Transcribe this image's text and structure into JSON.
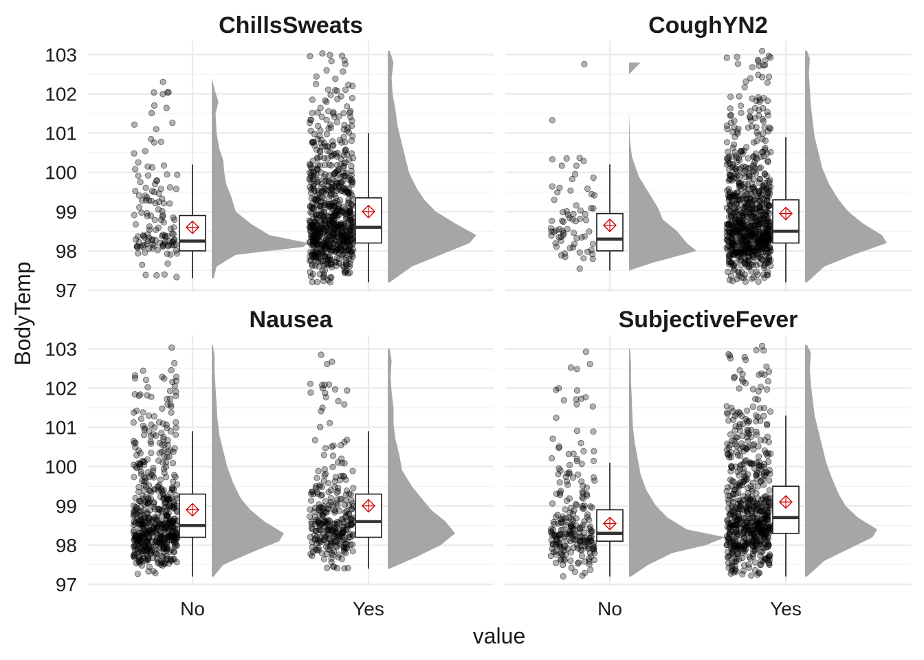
{
  "chart_data": {
    "type": "raincloud",
    "xlabel": "value",
    "ylabel": "BodyTemp",
    "categories": [
      "No",
      "Yes"
    ],
    "yticks": [
      "97",
      "98",
      "99",
      "100",
      "101",
      "102",
      "103"
    ],
    "ylim": [
      97,
      103.2
    ],
    "grid": true,
    "colors": {
      "points": "#000000",
      "density": "#a6a6a6",
      "mean": "#d40000",
      "box": "#1a1a1a"
    },
    "facets": [
      {
        "title": "ChillsSweats",
        "groups": [
          {
            "category": "No",
            "n": 130,
            "min": 97.3,
            "q1": 98.0,
            "median": 98.25,
            "q3": 98.9,
            "max": 100.2,
            "mean": 98.6,
            "density": [
              [
                97.3,
                0.02
              ],
              [
                97.6,
                0.05
              ],
              [
                97.9,
                0.25
              ],
              [
                98.1,
                0.95
              ],
              [
                98.2,
                1.0
              ],
              [
                98.4,
                0.6
              ],
              [
                98.7,
                0.4
              ],
              [
                99.0,
                0.25
              ],
              [
                99.4,
                0.2
              ],
              [
                99.7,
                0.15
              ],
              [
                100.0,
                0.13
              ],
              [
                100.3,
                0.12
              ],
              [
                100.6,
                0.08
              ],
              [
                101.0,
                0.05
              ],
              [
                101.5,
                0.04
              ],
              [
                101.8,
                0.07
              ],
              [
                102.1,
                0.03
              ],
              [
                102.4,
                0.0
              ]
            ]
          },
          {
            "category": "Yes",
            "n": 720,
            "min": 97.2,
            "q1": 98.2,
            "median": 98.6,
            "q3": 99.35,
            "max": 101.0,
            "mean": 99.0,
            "density": [
              [
                97.2,
                0.02
              ],
              [
                97.6,
                0.25
              ],
              [
                97.9,
                0.55
              ],
              [
                98.2,
                0.85
              ],
              [
                98.4,
                0.92
              ],
              [
                98.7,
                0.7
              ],
              [
                99.0,
                0.5
              ],
              [
                99.3,
                0.38
              ],
              [
                99.6,
                0.3
              ],
              [
                100.0,
                0.22
              ],
              [
                100.4,
                0.18
              ],
              [
                100.8,
                0.14
              ],
              [
                101.2,
                0.1
              ],
              [
                101.6,
                0.08
              ],
              [
                102.0,
                0.05
              ],
              [
                102.4,
                0.04
              ],
              [
                102.8,
                0.06
              ],
              [
                103.1,
                0.02
              ]
            ]
          }
        ]
      },
      {
        "title": "CoughYN2",
        "groups": [
          {
            "category": "No",
            "n": 70,
            "min": 97.5,
            "q1": 98.0,
            "median": 98.3,
            "q3": 98.95,
            "max": 100.2,
            "mean": 98.65,
            "density": [
              [
                97.5,
                0.0
              ],
              [
                97.7,
                0.25
              ],
              [
                98.0,
                0.7
              ],
              [
                98.2,
                0.6
              ],
              [
                98.5,
                0.5
              ],
              [
                98.8,
                0.35
              ],
              [
                99.1,
                0.3
              ],
              [
                99.5,
                0.2
              ],
              [
                99.9,
                0.1
              ],
              [
                100.4,
                0.03
              ],
              [
                100.8,
                0.01
              ],
              [
                101.5,
                0.0
              ],
              [
                102.5,
                0.0
              ],
              [
                102.8,
                0.12
              ]
            ]
          },
          {
            "category": "Yes",
            "n": 780,
            "min": 97.2,
            "q1": 98.2,
            "median": 98.5,
            "q3": 99.3,
            "max": 100.9,
            "mean": 98.95,
            "density": [
              [
                97.2,
                0.02
              ],
              [
                97.6,
                0.2
              ],
              [
                97.9,
                0.5
              ],
              [
                98.2,
                0.85
              ],
              [
                98.4,
                0.8
              ],
              [
                98.7,
                0.6
              ],
              [
                99.0,
                0.45
              ],
              [
                99.3,
                0.35
              ],
              [
                99.7,
                0.25
              ],
              [
                100.1,
                0.18
              ],
              [
                100.5,
                0.14
              ],
              [
                100.9,
                0.1
              ],
              [
                101.3,
                0.08
              ],
              [
                101.7,
                0.06
              ],
              [
                102.1,
                0.05
              ],
              [
                102.5,
                0.04
              ],
              [
                102.9,
                0.05
              ],
              [
                103.1,
                0.02
              ]
            ]
          }
        ]
      },
      {
        "title": "Nausea",
        "groups": [
          {
            "category": "No",
            "n": 560,
            "min": 97.2,
            "q1": 98.2,
            "median": 98.5,
            "q3": 99.3,
            "max": 100.9,
            "mean": 98.9,
            "density": [
              [
                97.2,
                0.02
              ],
              [
                97.5,
                0.12
              ],
              [
                97.8,
                0.4
              ],
              [
                98.1,
                0.7
              ],
              [
                98.3,
                0.75
              ],
              [
                98.6,
                0.55
              ],
              [
                98.9,
                0.4
              ],
              [
                99.2,
                0.3
              ],
              [
                99.6,
                0.22
              ],
              [
                100.0,
                0.16
              ],
              [
                100.4,
                0.12
              ],
              [
                100.8,
                0.08
              ],
              [
                101.2,
                0.06
              ],
              [
                101.6,
                0.05
              ],
              [
                102.0,
                0.04
              ],
              [
                102.4,
                0.03
              ],
              [
                102.8,
                0.03
              ],
              [
                103.1,
                0.01
              ]
            ]
          },
          {
            "category": "Yes",
            "n": 290,
            "min": 97.4,
            "q1": 98.2,
            "median": 98.6,
            "q3": 99.3,
            "max": 100.9,
            "mean": 99.0,
            "density": [
              [
                97.4,
                0.02
              ],
              [
                97.7,
                0.3
              ],
              [
                98.0,
                0.55
              ],
              [
                98.3,
                0.7
              ],
              [
                98.6,
                0.6
              ],
              [
                98.9,
                0.45
              ],
              [
                99.2,
                0.35
              ],
              [
                99.5,
                0.25
              ],
              [
                99.9,
                0.15
              ],
              [
                100.3,
                0.12
              ],
              [
                100.7,
                0.08
              ],
              [
                101.1,
                0.06
              ],
              [
                101.5,
                0.06
              ],
              [
                101.9,
                0.04
              ],
              [
                102.3,
                0.03
              ],
              [
                102.7,
                0.04
              ],
              [
                103.0,
                0.02
              ]
            ]
          }
        ]
      },
      {
        "title": "SubjectiveFever",
        "groups": [
          {
            "category": "No",
            "n": 230,
            "min": 97.2,
            "q1": 98.1,
            "median": 98.3,
            "q3": 98.9,
            "max": 100.1,
            "mean": 98.55,
            "density": [
              [
                97.2,
                0.02
              ],
              [
                97.5,
                0.2
              ],
              [
                97.8,
                0.45
              ],
              [
                98.0,
                0.8
              ],
              [
                98.2,
                1.0
              ],
              [
                98.4,
                0.6
              ],
              [
                98.7,
                0.4
              ],
              [
                99.0,
                0.28
              ],
              [
                99.4,
                0.18
              ],
              [
                99.8,
                0.12
              ],
              [
                100.2,
                0.09
              ],
              [
                100.6,
                0.06
              ],
              [
                101.0,
                0.04
              ],
              [
                101.6,
                0.03
              ],
              [
                102.2,
                0.02
              ],
              [
                102.6,
                0.02
              ],
              [
                103.0,
                0.01
              ]
            ]
          },
          {
            "category": "Yes",
            "n": 620,
            "min": 97.2,
            "q1": 98.3,
            "median": 98.7,
            "q3": 99.5,
            "max": 101.3,
            "mean": 99.1,
            "density": [
              [
                97.2,
                0.02
              ],
              [
                97.6,
                0.2
              ],
              [
                97.9,
                0.45
              ],
              [
                98.2,
                0.7
              ],
              [
                98.4,
                0.75
              ],
              [
                98.7,
                0.55
              ],
              [
                99.0,
                0.42
              ],
              [
                99.3,
                0.35
              ],
              [
                99.7,
                0.28
              ],
              [
                100.1,
                0.22
              ],
              [
                100.5,
                0.18
              ],
              [
                100.9,
                0.14
              ],
              [
                101.3,
                0.1
              ],
              [
                101.7,
                0.08
              ],
              [
                102.1,
                0.06
              ],
              [
                102.5,
                0.05
              ],
              [
                102.9,
                0.06
              ],
              [
                103.1,
                0.02
              ]
            ]
          }
        ]
      }
    ]
  }
}
